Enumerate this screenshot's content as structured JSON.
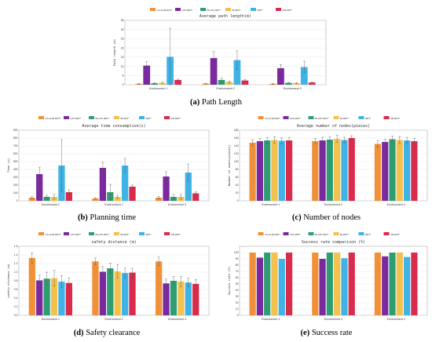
{
  "legend_labels": [
    "CA-IA-Bi-RRT*",
    "LPF-RRT*",
    "BI-LPF-RRT*",
    "BI-RRT*",
    "RRT*",
    "CB-RRT*"
  ],
  "colors": [
    "#f0913a",
    "#7a2a9e",
    "#2e9e72",
    "#f2c14e",
    "#3fb3e6",
    "#d92b4b"
  ],
  "captions": [
    {
      "label": "(a)",
      "text": "Path Length"
    },
    {
      "label": "(b)",
      "text": "Planning time"
    },
    {
      "label": "(c)",
      "text": "Number of nodes"
    },
    {
      "label": "(d)",
      "text": "Safety clearance"
    },
    {
      "label": "(e)",
      "text": "Success rate"
    }
  ],
  "chart_data": [
    {
      "id": "a",
      "type": "bar",
      "title": "Average path length(m)",
      "ylabel": "Path length (m)",
      "categories": [
        "Environment 1",
        "Environment 2",
        "Environment 3"
      ],
      "ylim": [
        0,
        35
      ],
      "yticks": [
        0,
        5,
        10,
        15,
        20,
        25,
        30,
        35
      ],
      "series": [
        {
          "name": "CA-IA-Bi-RRT*",
          "values": [
            0.5,
            0.6,
            0.5
          ],
          "errors": [
            0.2,
            0.2,
            0.2
          ]
        },
        {
          "name": "LPF-RRT*",
          "values": [
            10.4,
            14.5,
            9.0
          ],
          "errors": [
            2.2,
            3.5,
            2.0
          ]
        },
        {
          "name": "BI-LPF-RRT*",
          "values": [
            0.8,
            2.6,
            1.0
          ],
          "errors": [
            0.3,
            1.0,
            0.3
          ]
        },
        {
          "name": "BI-RRT*",
          "values": [
            1.0,
            1.5,
            0.9
          ],
          "errors": [
            0.4,
            0.5,
            0.3
          ]
        },
        {
          "name": "RRT*",
          "values": [
            15.2,
            13.4,
            9.6
          ],
          "errors": [
            15.5,
            5.0,
            3.2
          ]
        },
        {
          "name": "CB-RRT*",
          "values": [
            2.6,
            2.3,
            1.2
          ],
          "errors": [
            0.4,
            0.6,
            0.3
          ]
        }
      ]
    },
    {
      "id": "b",
      "type": "bar",
      "title": "Average time consumption(s)",
      "ylabel": "Time (s)",
      "categories": [
        "Environment 1",
        "Environment 2",
        "Environment 3"
      ],
      "ylim": [
        0,
        900
      ],
      "yticks": [
        0,
        100,
        200,
        300,
        400,
        500,
        600,
        700,
        800,
        900
      ],
      "series": [
        {
          "name": "CA-IA-Bi-RRT*",
          "values": [
            40,
            30,
            40
          ],
          "errors": [
            15,
            10,
            15
          ]
        },
        {
          "name": "LPF-RRT*",
          "values": [
            340,
            420,
            310
          ],
          "errors": [
            90,
            70,
            60
          ]
        },
        {
          "name": "BI-LPF-RRT*",
          "values": [
            50,
            110,
            50
          ],
          "errors": [
            20,
            100,
            30
          ]
        },
        {
          "name": "BI-RRT*",
          "values": [
            50,
            50,
            50
          ],
          "errors": [
            30,
            20,
            30
          ]
        },
        {
          "name": "RRT*",
          "values": [
            450,
            450,
            360
          ],
          "errors": [
            330,
            90,
            110
          ]
        },
        {
          "name": "CB-RRT*",
          "values": [
            110,
            180,
            95
          ],
          "errors": [
            30,
            20,
            20
          ]
        }
      ]
    },
    {
      "id": "c",
      "type": "bar",
      "title": "Average number of nodes(pieces)",
      "ylabel": "Number of nodes(pieces)",
      "categories": [
        "Environment 1",
        "Environment 2",
        "Environment 3"
      ],
      "ylim": [
        0,
        180
      ],
      "yticks": [
        0,
        20,
        40,
        60,
        80,
        100,
        120,
        140,
        160,
        180
      ],
      "series": [
        {
          "name": "CA-IA-Bi-RRT*",
          "values": [
            148,
            152,
            145
          ],
          "errors": [
            8,
            7,
            8
          ]
        },
        {
          "name": "LPF-RRT*",
          "values": [
            152,
            154,
            150
          ],
          "errors": [
            7,
            8,
            7
          ]
        },
        {
          "name": "BI-LPF-RRT*",
          "values": [
            154,
            156,
            157
          ],
          "errors": [
            7,
            7,
            8
          ]
        },
        {
          "name": "BI-RRT*",
          "values": [
            155,
            158,
            155
          ],
          "errors": [
            8,
            9,
            9
          ]
        },
        {
          "name": "RRT*",
          "values": [
            153,
            155,
            154
          ],
          "errors": [
            8,
            7,
            8
          ]
        },
        {
          "name": "CB-RRT*",
          "values": [
            154,
            160,
            152
          ],
          "errors": [
            7,
            6,
            7
          ]
        }
      ]
    },
    {
      "id": "d",
      "type": "bar",
      "title": "safety distance (m)",
      "ylabel": "safety distance (m)",
      "categories": [
        "Environment 1",
        "Environment 2",
        "Environment 3"
      ],
      "ylim": [
        0,
        1.6
      ],
      "yticks": [
        0,
        0.2,
        0.4,
        0.6,
        0.8,
        1.0,
        1.2,
        1.4,
        1.6
      ],
      "series": [
        {
          "name": "CA-IA-Bi-RRT*",
          "values": [
            1.33,
            1.25,
            1.25
          ],
          "errors": [
            0.12,
            0.08,
            0.1
          ]
        },
        {
          "name": "LPF-RRT*",
          "values": [
            0.81,
            1.01,
            0.74
          ],
          "errors": [
            0.12,
            0.12,
            0.1
          ]
        },
        {
          "name": "BI-LPF-RRT*",
          "values": [
            0.85,
            1.09,
            0.8
          ],
          "errors": [
            0.15,
            0.12,
            0.1
          ]
        },
        {
          "name": "BI-RRT*",
          "values": [
            0.86,
            1.02,
            0.78
          ],
          "errors": [
            0.18,
            0.15,
            0.12
          ]
        },
        {
          "name": "RRT*",
          "values": [
            0.78,
            0.98,
            0.76
          ],
          "errors": [
            0.14,
            0.12,
            0.1
          ]
        },
        {
          "name": "CB-RRT*",
          "values": [
            0.75,
            0.99,
            0.73
          ],
          "errors": [
            0.12,
            0.1,
            0.1
          ]
        }
      ]
    },
    {
      "id": "e",
      "type": "bar",
      "title": "Success rate comparison (%)",
      "ylabel": "Success rate (%)",
      "categories": [
        "Environment 1",
        "Environment 2",
        "Environment 3"
      ],
      "ylim": [
        0,
        110
      ],
      "yticks": [
        0,
        10,
        20,
        30,
        40,
        50,
        60,
        70,
        80,
        90,
        100
      ],
      "series": [
        {
          "name": "CA-IA-Bi-RRT*",
          "values": [
            100,
            100,
            100
          ]
        },
        {
          "name": "LPF-RRT*",
          "values": [
            92,
            90,
            94
          ]
        },
        {
          "name": "BI-LPF-RRT*",
          "values": [
            100,
            100,
            100
          ]
        },
        {
          "name": "BI-RRT*",
          "values": [
            100,
            100,
            100
          ]
        },
        {
          "name": "RRT*",
          "values": [
            90,
            91,
            93
          ]
        },
        {
          "name": "CB-RRT*",
          "values": [
            100,
            100,
            100
          ]
        }
      ]
    }
  ]
}
